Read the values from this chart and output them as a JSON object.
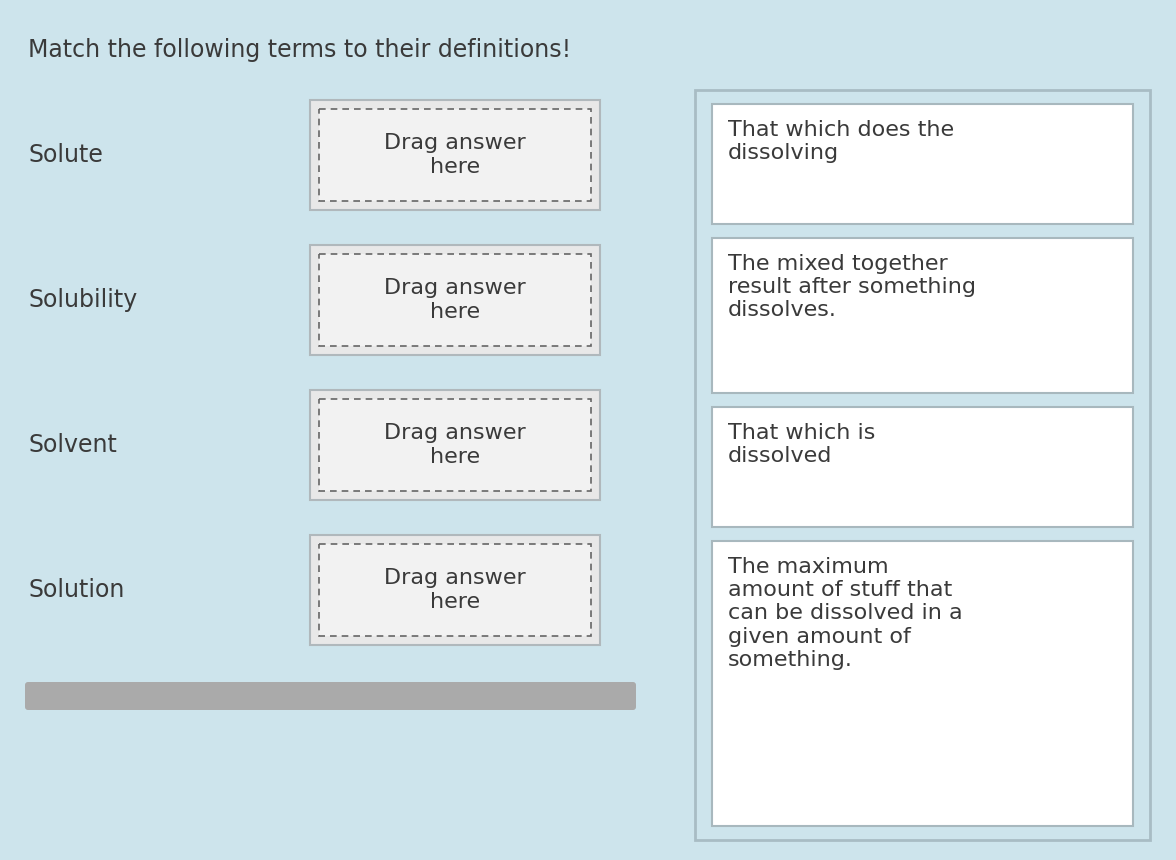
{
  "title": "Match the following terms to their definitions!",
  "title_fontsize": 17,
  "background_color": "#cde4ec",
  "terms": [
    "Solute",
    "Solubility",
    "Solvent",
    "Solution"
  ],
  "drag_text": [
    "Drag answer\nhere",
    "Drag answer\nhere",
    "Drag answer\nhere",
    "Drag answer\nhere"
  ],
  "definitions": [
    "That which does the\ndissolving",
    "The mixed together\nresult after something\ndissolves.",
    "That which is\ndissolved",
    "The maximum\namount of stuff that\ncan be dissolved in a\ngiven amount of\nsomething."
  ],
  "text_color": "#3a3a3a",
  "term_fontsize": 17,
  "drag_fontsize": 16,
  "def_fontsize": 16,
  "outer_box_color": "#a8bcc4",
  "outer_box_facecolor": "#cde4ec",
  "drag_outer_color": "#b0b8bc",
  "drag_inner_color": "#888888",
  "drag_facecolor": "#f2f2f2",
  "def_box_color": "#a8b8be",
  "def_facecolor": "#ffffff",
  "scrollbar_color": "#aaaaaa"
}
